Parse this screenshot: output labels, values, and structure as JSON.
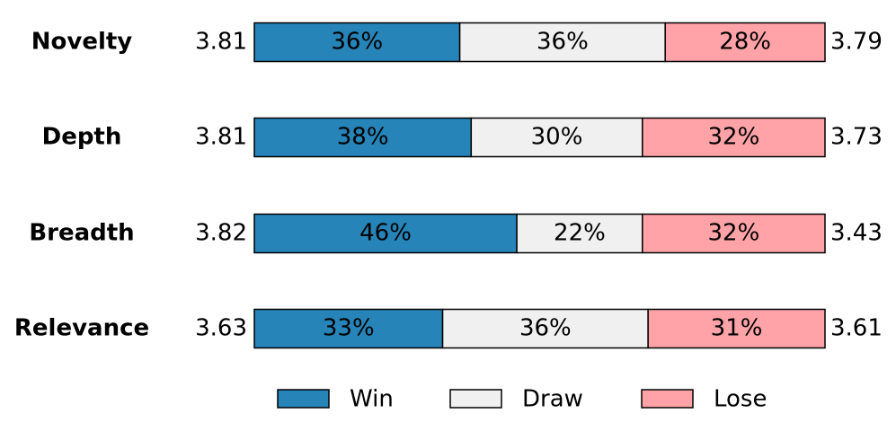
{
  "chart_data": {
    "type": "stacked_barh",
    "categories": [
      "Novelty",
      "Depth",
      "Breadth",
      "Relevance"
    ],
    "left_scores": [
      3.81,
      3.81,
      3.82,
      3.63
    ],
    "right_scores": [
      3.79,
      3.73,
      3.43,
      3.61
    ],
    "xlim": [
      0,
      100
    ],
    "series": [
      {
        "name": "Win",
        "color": "#2684b8",
        "values": [
          36,
          38,
          46,
          33
        ],
        "value_labels": [
          "36%",
          "38%",
          "46%",
          "33%"
        ]
      },
      {
        "name": "Draw",
        "color": "#f0f0f0",
        "values": [
          36,
          30,
          22,
          36
        ],
        "value_labels": [
          "36%",
          "30%",
          "22%",
          "36%"
        ]
      },
      {
        "name": "Lose",
        "color": "#ffa3a8",
        "values": [
          28,
          32,
          32,
          31
        ],
        "value_labels": [
          "28%",
          "32%",
          "32%",
          "31%"
        ]
      }
    ],
    "legend": "bottom"
  }
}
